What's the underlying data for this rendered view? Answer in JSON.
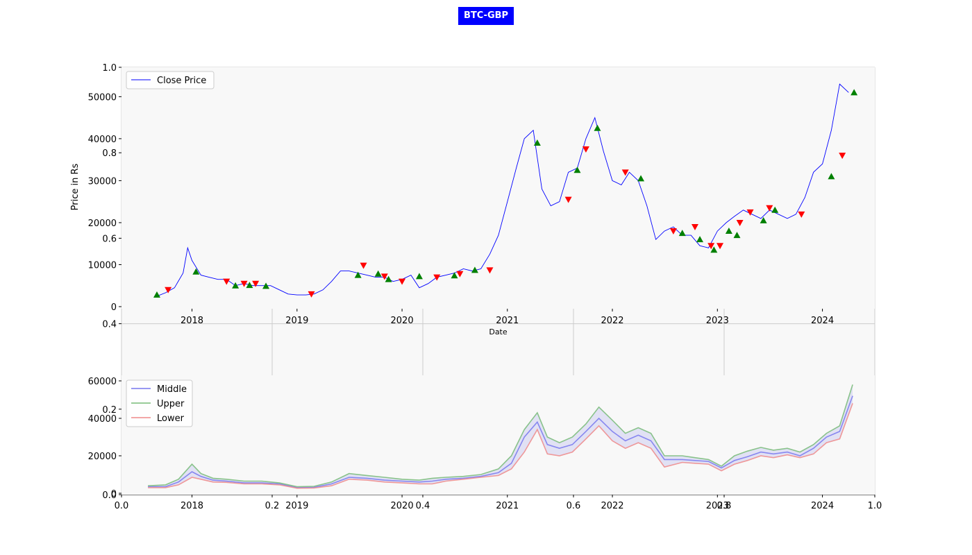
{
  "title": "BTC-GBP",
  "chart_data": [
    {
      "type": "line",
      "title": "",
      "xlabel": "Date",
      "ylabel": "Price in Rs",
      "xlim": [
        "2017-05-01",
        "2024-07-01"
      ],
      "ylim": [
        0,
        57000
      ],
      "yticks": [
        0,
        10000,
        20000,
        30000,
        40000,
        50000
      ],
      "xticks": [
        "2018",
        "2019",
        "2020",
        "2021",
        "2022",
        "2023",
        "2024"
      ],
      "legend": "upper-left",
      "series": [
        {
          "name": "Close Price",
          "color": "#0000ff",
          "x": [
            "2017-09-01",
            "2017-10-01",
            "2017-11-01",
            "2017-12-01",
            "2017-12-17",
            "2018-01-01",
            "2018-02-01",
            "2018-03-01",
            "2018-04-01",
            "2018-05-01",
            "2018-06-01",
            "2018-07-01",
            "2018-08-01",
            "2018-09-01",
            "2018-10-01",
            "2018-11-01",
            "2018-12-01",
            "2019-01-01",
            "2019-02-01",
            "2019-03-01",
            "2019-04-01",
            "2019-05-01",
            "2019-06-01",
            "2019-07-01",
            "2019-08-01",
            "2019-09-01",
            "2019-10-01",
            "2019-11-01",
            "2019-12-01",
            "2020-01-01",
            "2020-02-01",
            "2020-03-01",
            "2020-04-01",
            "2020-05-01",
            "2020-06-01",
            "2020-07-01",
            "2020-08-01",
            "2020-09-01",
            "2020-10-01",
            "2020-11-01",
            "2020-12-01",
            "2021-01-01",
            "2021-02-01",
            "2021-03-01",
            "2021-04-01",
            "2021-05-01",
            "2021-06-01",
            "2021-07-01",
            "2021-08-01",
            "2021-09-01",
            "2021-10-01",
            "2021-11-01",
            "2021-12-01",
            "2022-01-01",
            "2022-02-01",
            "2022-03-01",
            "2022-04-01",
            "2022-05-01",
            "2022-06-01",
            "2022-07-01",
            "2022-08-01",
            "2022-09-01",
            "2022-10-01",
            "2022-11-01",
            "2022-12-01",
            "2023-01-01",
            "2023-02-01",
            "2023-03-01",
            "2023-04-01",
            "2023-05-01",
            "2023-06-01",
            "2023-07-01",
            "2023-08-01",
            "2023-09-01",
            "2023-10-01",
            "2023-11-01",
            "2023-12-01",
            "2024-01-01",
            "2024-02-01",
            "2024-03-01",
            "2024-04-01"
          ],
          "y": [
            2500,
            3300,
            4500,
            8000,
            14000,
            11000,
            7500,
            7000,
            6500,
            6500,
            5000,
            5500,
            5000,
            5000,
            5000,
            4000,
            3000,
            2800,
            2800,
            3000,
            4000,
            6000,
            8500,
            8500,
            8000,
            7500,
            7000,
            7000,
            6000,
            6500,
            7500,
            4500,
            5500,
            7000,
            7500,
            8000,
            9000,
            8500,
            9000,
            12500,
            17000,
            25000,
            33000,
            40000,
            42000,
            28000,
            24000,
            25000,
            32000,
            33000,
            40000,
            45000,
            37000,
            30000,
            29000,
            32000,
            30000,
            24000,
            16000,
            18000,
            19000,
            17000,
            17000,
            14500,
            14000,
            18000,
            20000,
            21500,
            23000,
            22000,
            21000,
            23000,
            22000,
            21000,
            22000,
            26000,
            32000,
            34000,
            42000,
            53000,
            51000
          ]
        }
      ],
      "markers": {
        "buy": {
          "color": "#008000",
          "shape": "triangle-up",
          "x": [
            "2017-09-01",
            "2018-01-15",
            "2018-06-01",
            "2018-07-20",
            "2018-09-15",
            "2019-08-01",
            "2019-10-10",
            "2019-11-15",
            "2020-03-01",
            "2020-07-01",
            "2020-09-10",
            "2021-04-15",
            "2021-09-01",
            "2021-11-10",
            "2022-04-10",
            "2022-09-01",
            "2022-11-01",
            "2022-12-20",
            "2023-02-10",
            "2023-03-10",
            "2023-06-10",
            "2023-07-20",
            "2024-02-01",
            "2024-04-20"
          ],
          "y": [
            2800,
            8300,
            5000,
            5100,
            4900,
            7500,
            7800,
            6500,
            7200,
            7400,
            8700,
            39000,
            32500,
            42500,
            30500,
            17500,
            16000,
            13500,
            18000,
            17000,
            20500,
            23000,
            31000,
            51000
          ]
        },
        "sell": {
          "color": "#ff0000",
          "shape": "triangle-down",
          "x": [
            "2017-10-10",
            "2018-05-01",
            "2018-07-01",
            "2018-08-10",
            "2019-02-20",
            "2019-08-20",
            "2019-11-01",
            "2020-01-01",
            "2020-05-01",
            "2020-07-20",
            "2020-11-01",
            "2021-08-01",
            "2021-10-01",
            "2022-02-15",
            "2022-08-01",
            "2022-10-15",
            "2022-12-10",
            "2023-01-10",
            "2023-03-20",
            "2023-04-25",
            "2023-07-01",
            "2023-10-20",
            "2024-03-10"
          ],
          "y": [
            4000,
            6000,
            5500,
            5500,
            3000,
            9800,
            7200,
            6000,
            7000,
            7800,
            8700,
            25500,
            37500,
            32000,
            18000,
            19000,
            14500,
            14500,
            20000,
            22500,
            23500,
            22000,
            36000
          ]
        }
      }
    },
    {
      "type": "line",
      "title": "",
      "xlabel": "",
      "ylabel": "",
      "xlim": [
        "2017-05-01",
        "2024-07-01"
      ],
      "ylim": [
        0,
        60000
      ],
      "yticks": [
        0,
        20000,
        40000,
        60000
      ],
      "xticks": [
        "2018",
        "2019",
        "2020",
        "2021",
        "2022",
        "2023",
        "2024"
      ],
      "legend": "upper-left",
      "band_fill": true,
      "x": [
        "2017-08-01",
        "2017-10-01",
        "2017-11-15",
        "2018-01-01",
        "2018-02-01",
        "2018-03-15",
        "2018-05-01",
        "2018-07-01",
        "2018-09-01",
        "2018-11-01",
        "2019-01-01",
        "2019-03-01",
        "2019-05-01",
        "2019-07-01",
        "2019-09-01",
        "2019-11-01",
        "2020-01-01",
        "2020-03-01",
        "2020-04-15",
        "2020-06-01",
        "2020-08-01",
        "2020-10-01",
        "2020-12-01",
        "2021-01-15",
        "2021-03-01",
        "2021-04-15",
        "2021-05-20",
        "2021-07-01",
        "2021-08-15",
        "2021-10-01",
        "2021-11-15",
        "2022-01-01",
        "2022-02-15",
        "2022-04-01",
        "2022-05-15",
        "2022-07-01",
        "2022-09-01",
        "2022-10-15",
        "2022-12-01",
        "2023-01-15",
        "2023-03-01",
        "2023-04-15",
        "2023-06-01",
        "2023-07-15",
        "2023-09-01",
        "2023-10-15",
        "2023-12-01",
        "2024-01-15",
        "2024-03-01",
        "2024-04-15"
      ],
      "series": [
        {
          "name": "Middle",
          "color": "#7777ee",
          "values": [
            3500,
            3500,
            6000,
            11500,
            9000,
            7000,
            6500,
            5500,
            5500,
            5000,
            3000,
            3200,
            5000,
            8500,
            8000,
            7000,
            6500,
            6000,
            6500,
            7500,
            8000,
            9000,
            11000,
            16000,
            30000,
            38000,
            26000,
            24000,
            26000,
            33000,
            40000,
            33000,
            28000,
            31000,
            28000,
            18000,
            18000,
            17500,
            17000,
            13500,
            17500,
            19500,
            22000,
            21000,
            22000,
            20000,
            24000,
            30000,
            33000,
            52000
          ]
        },
        {
          "name": "Upper",
          "color": "#77bb77",
          "values": [
            4000,
            4500,
            7500,
            15500,
            10500,
            8000,
            7500,
            6500,
            6500,
            5500,
            3500,
            3700,
            6000,
            10500,
            9500,
            8500,
            7500,
            7000,
            8000,
            8500,
            9000,
            10000,
            13000,
            20000,
            34000,
            43000,
            30000,
            27000,
            30000,
            37000,
            46000,
            39000,
            32000,
            35000,
            32000,
            20000,
            20000,
            19000,
            18000,
            14500,
            20000,
            22500,
            24500,
            23000,
            24000,
            22000,
            26000,
            32000,
            36000,
            58000
          ]
        },
        {
          "name": "Lower",
          "color": "#ee8888",
          "values": [
            3000,
            3000,
            4500,
            8500,
            7500,
            6000,
            5800,
            5000,
            5000,
            4500,
            2700,
            2800,
            4000,
            7500,
            7000,
            6000,
            5500,
            5000,
            5000,
            6500,
            7500,
            8500,
            9500,
            13000,
            22000,
            34000,
            21000,
            20000,
            22000,
            29000,
            36000,
            28000,
            24000,
            27000,
            24000,
            14000,
            16500,
            16000,
            15500,
            12000,
            15500,
            17500,
            20000,
            19000,
            20500,
            19000,
            21000,
            27000,
            29000,
            48000
          ]
        }
      ]
    },
    {
      "type": "line",
      "title": "",
      "xlabel": "",
      "ylabel": "",
      "xlim": [
        0,
        1
      ],
      "ylim": [
        0,
        1
      ],
      "xticks": [
        0.0,
        0.2,
        0.4,
        0.6,
        0.8,
        1.0
      ],
      "yticks": [
        0.0,
        0.2,
        0.4,
        0.6,
        0.8,
        1.0
      ],
      "grid": true,
      "series": []
    }
  ]
}
